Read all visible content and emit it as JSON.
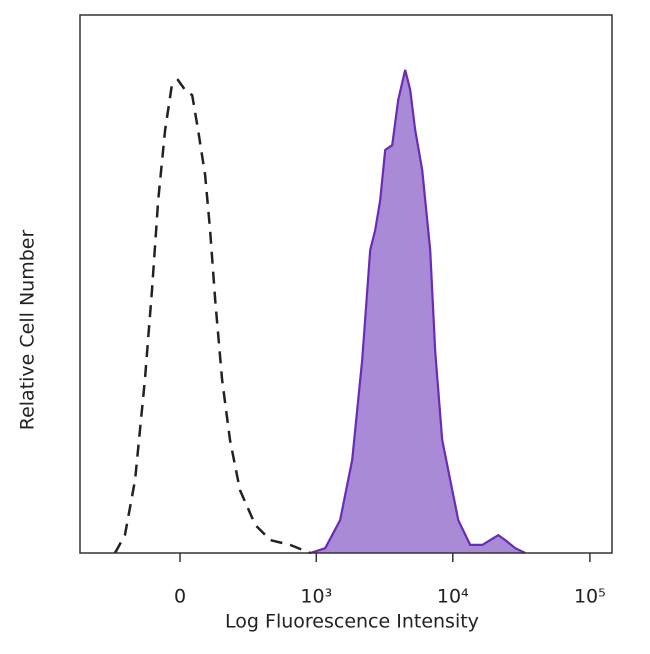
{
  "chart_data": {
    "type": "histogram-overlay",
    "x_label": "Log Fluorescence Intensity",
    "y_label": "Relative Cell Number",
    "xscale": "biexponential",
    "xlim": [
      -531,
      145000
    ],
    "ylim": [
      0,
      100
    ],
    "xticks": [
      0,
      {
        "value": 1000,
        "label": "10³"
      },
      {
        "value": 10000,
        "label": "10⁴"
      },
      {
        "value": 100000,
        "label": "10⁵"
      }
    ],
    "series": [
      {
        "color": "#222222",
        "style": "dashed",
        "fill": null,
        "x": [
          -271,
          -218,
          -170,
          -128,
          -100,
          -77,
          -52,
          -28,
          -7,
          17,
          42,
          63,
          89,
          108,
          128,
          157,
          193,
          243,
          334,
          445,
          636,
          900
        ],
        "values": [
          0,
          3.3,
          13.6,
          32.2,
          48.9,
          65.6,
          78.6,
          87.0,
          87.9,
          86.1,
          85.1,
          78.6,
          70.3,
          60.0,
          47.0,
          32.2,
          21.0,
          11.7,
          5.2,
          2.4,
          1.5,
          0
        ]
      },
      {
        "color": "#6a2bb5",
        "style": "solid",
        "fill": "#a98ad6",
        "x": [
          900,
          1164,
          1501,
          1841,
          2179,
          2495,
          2712,
          2950,
          3210,
          3612,
          3995,
          4498,
          4891,
          5322,
          5984,
          6847,
          7442,
          8374,
          9574,
          10968,
          13407,
          16420,
          18758,
          21484,
          24149,
          28577,
          33805
        ],
        "values": [
          0,
          0.9,
          6.1,
          17.3,
          35.9,
          56.3,
          60.0,
          65.6,
          74.9,
          75.8,
          84.2,
          89.8,
          86.1,
          78.6,
          71.2,
          56.3,
          37.5,
          21.0,
          13.6,
          6.1,
          1.5,
          1.5,
          2.4,
          3.3,
          2.4,
          0.9,
          0
        ]
      }
    ]
  }
}
